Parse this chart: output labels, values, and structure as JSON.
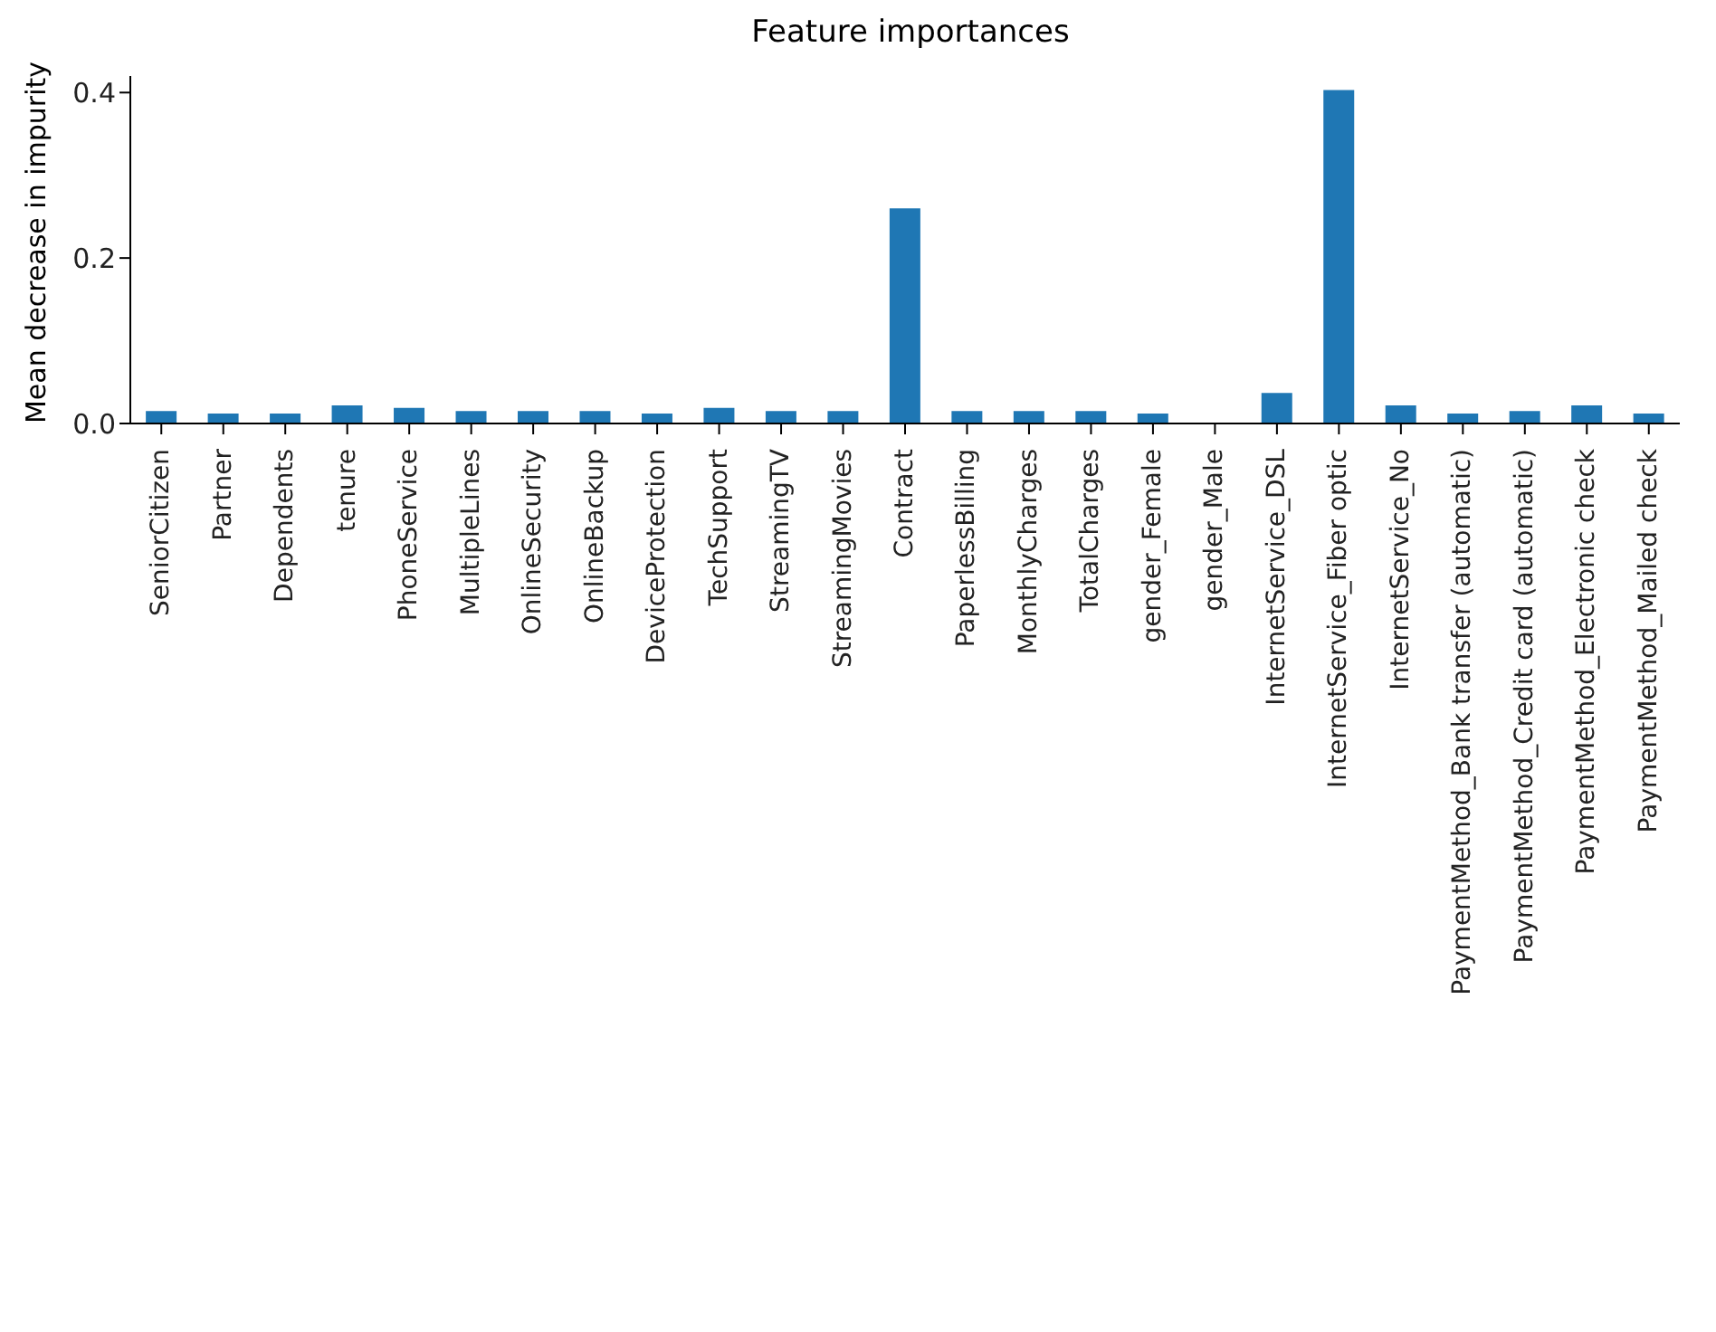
{
  "chart_data": {
    "type": "bar",
    "title": "Feature importances",
    "ylabel": "Mean decrease in impurity",
    "categories": [
      "SeniorCitizen",
      "Partner",
      "Dependents",
      "tenure",
      "PhoneService",
      "MultipleLines",
      "OnlineSecurity",
      "OnlineBackup",
      "DeviceProtection",
      "TechSupport",
      "StreamingTV",
      "StreamingMovies",
      "Contract",
      "PaperlessBilling",
      "MonthlyCharges",
      "TotalCharges",
      "gender_Female",
      "gender_Male",
      "InternetService_DSL",
      "InternetService_Fiber optic",
      "InternetService_No",
      "PaymentMethod_Bank transfer (automatic)",
      "PaymentMethod_Credit card (automatic)",
      "PaymentMethod_Electronic check",
      "PaymentMethod_Mailed check"
    ],
    "values": [
      0.015,
      0.012,
      0.012,
      0.022,
      0.019,
      0.015,
      0.015,
      0.015,
      0.012,
      0.019,
      0.015,
      0.015,
      0.26,
      0.015,
      0.015,
      0.015,
      0.012,
      0,
      0.037,
      0.403,
      0.022,
      0.012,
      0.015,
      0.022,
      0.012
    ],
    "color": "#1f77b4",
    "ylim": [
      0,
      0.42
    ],
    "yticks": [
      {
        "value": 0,
        "label": "0.0"
      },
      {
        "value": 0.2,
        "label": "0.2"
      },
      {
        "value": 0.4,
        "label": "0.4"
      }
    ],
    "grid": false
  }
}
